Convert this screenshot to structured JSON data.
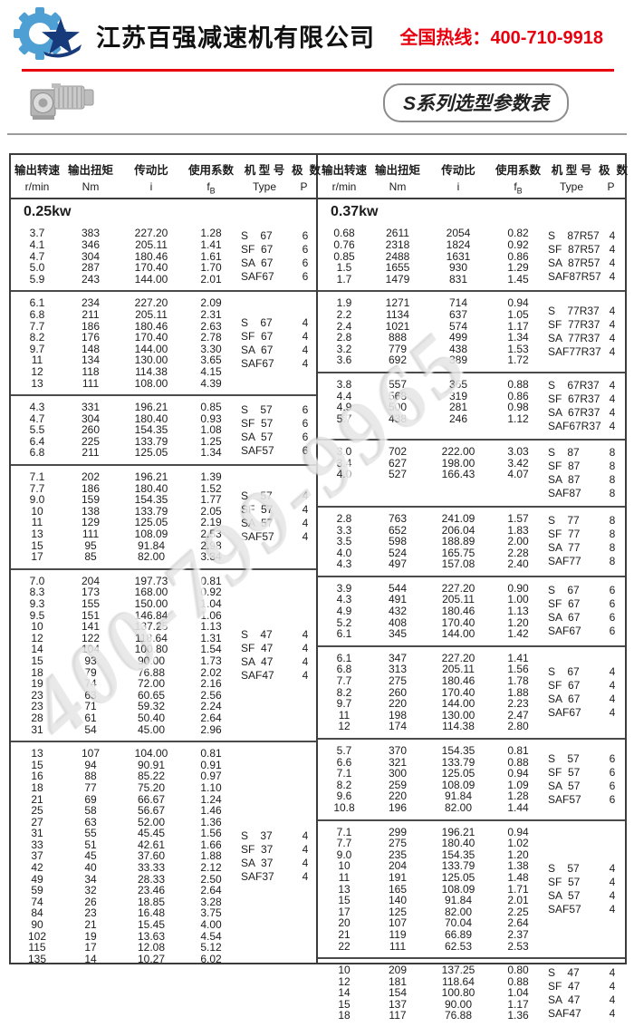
{
  "header": {
    "company": "江苏百强减速机有限公司",
    "hotline_label": "全国热线：",
    "hotline_number": "400-710-9918",
    "badge": "S系列选型参数表",
    "logo_icon": "gear-star-logo",
    "product_icon": "gear-reducer-photo"
  },
  "colors": {
    "accent_red": "#e8000f",
    "logo_blue": "#4e9fd4",
    "logo_navy": "#173a7a",
    "divider_gray": "#9c9c9c",
    "table_border": "#3c3c3c"
  },
  "watermark": "400-799-9965",
  "table_headers": {
    "col1_cn": "输出转速",
    "col1_en": "r/min",
    "col2_cn": "输出扭矩",
    "col2_en": "Nm",
    "col3_cn": "传动比",
    "col3_en": "i",
    "col4_cn": "使用系数",
    "col4_en": "f",
    "col4_sub": "B",
    "col5_cn": "机 型 号",
    "col5_en": "Type",
    "col6_cn": "极  数",
    "col6_en": "P"
  },
  "left_table": {
    "power": "0.25kw",
    "blocks": [
      {
        "rows": [
          [
            "3.7",
            "383",
            "227.20",
            "1.28"
          ],
          [
            "4.1",
            "346",
            "205.11",
            "1.41"
          ],
          [
            "4.7",
            "304",
            "180.46",
            "1.61"
          ],
          [
            "5.0",
            "287",
            "170.40",
            "1.70"
          ],
          [
            "5.9",
            "243",
            "144.00",
            "2.01"
          ]
        ],
        "types": [
          [
            "S    67",
            "6"
          ],
          [
            "SF  67",
            "6"
          ],
          [
            "SA  67",
            "6"
          ],
          [
            "SAF67",
            "6"
          ]
        ]
      },
      {
        "rows": [
          [
            "6.1",
            "234",
            "227.20",
            "2.09"
          ],
          [
            "6.8",
            "211",
            "205.11",
            "2.31"
          ],
          [
            "7.7",
            "186",
            "180.46",
            "2.63"
          ],
          [
            "8.2",
            "176",
            "170.40",
            "2.78"
          ],
          [
            "9.7",
            "148",
            "144.00",
            "3.30"
          ],
          [
            "11",
            "134",
            "130.00",
            "3.65"
          ],
          [
            "12",
            "118",
            "114.38",
            "4.15"
          ],
          [
            "13",
            "111",
            "108.00",
            "4.39"
          ]
        ],
        "types": [
          [
            "S    67",
            "4"
          ],
          [
            "SF  67",
            "4"
          ],
          [
            "SA  67",
            "4"
          ],
          [
            "SAF67",
            "4"
          ]
        ]
      },
      {
        "rows": [
          [
            "4.3",
            "331",
            "196.21",
            "0.85"
          ],
          [
            "4.7",
            "304",
            "180.40",
            "0.93"
          ],
          [
            "5.5",
            "260",
            "154.35",
            "1.08"
          ],
          [
            "6.4",
            "225",
            "133.79",
            "1.25"
          ],
          [
            "6.8",
            "211",
            "125.05",
            "1.34"
          ]
        ],
        "types": [
          [
            "S    57",
            "6"
          ],
          [
            "SF  57",
            "6"
          ],
          [
            "SA  57",
            "6"
          ],
          [
            "SAF57",
            "6"
          ]
        ]
      },
      {
        "rows": [
          [
            "7.1",
            "202",
            "196.21",
            "1.39"
          ],
          [
            "7.7",
            "186",
            "180.40",
            "1.52"
          ],
          [
            "9.0",
            "159",
            "154.35",
            "1.77"
          ],
          [
            "10",
            "138",
            "133.79",
            "2.05"
          ],
          [
            "11",
            "129",
            "125.05",
            "2.19"
          ],
          [
            "13",
            "111",
            "108.09",
            "2.53"
          ],
          [
            "15",
            "95",
            "91.84",
            "2.98"
          ],
          [
            "17",
            "85",
            "82.00",
            "3.34"
          ]
        ],
        "types": [
          [
            "S    57",
            "4"
          ],
          [
            "SF  57",
            "4"
          ],
          [
            "SA  57",
            "4"
          ],
          [
            "SAF57",
            "4"
          ]
        ]
      },
      {
        "rows": [
          [
            "7.0",
            "204",
            "197.73",
            "0.81"
          ],
          [
            "8.3",
            "173",
            "168.00",
            "0.92"
          ],
          [
            "9.3",
            "155",
            "150.00",
            "1.04"
          ],
          [
            "9.5",
            "151",
            "146.84",
            "1.06"
          ],
          [
            "10",
            "141",
            "137.25",
            "1.13"
          ],
          [
            "12",
            "122",
            "118.64",
            "1.31"
          ],
          [
            "14",
            "104",
            "100.80",
            "1.54"
          ],
          [
            "15",
            "93",
            "90.00",
            "1.73"
          ],
          [
            "18",
            "79",
            "76.88",
            "2.02"
          ],
          [
            "19",
            "74",
            "72.00",
            "2.16"
          ],
          [
            "23",
            "63",
            "60.65",
            "2.56"
          ],
          [
            "23",
            "71",
            "59.32",
            "2.24"
          ],
          [
            "28",
            "61",
            "50.40",
            "2.64"
          ],
          [
            "31",
            "54",
            "45.00",
            "2.96"
          ]
        ],
        "types": [
          [
            "S    47",
            "4"
          ],
          [
            "SF  47",
            "4"
          ],
          [
            "SA  47",
            "4"
          ],
          [
            "SAF47",
            "4"
          ]
        ]
      },
      {
        "rows": [
          [
            "13",
            "107",
            "104.00",
            "0.81"
          ],
          [
            "15",
            "94",
            "90.91",
            "0.91"
          ],
          [
            "16",
            "88",
            "85.22",
            "0.97"
          ],
          [
            "18",
            "77",
            "75.20",
            "1.10"
          ],
          [
            "21",
            "69",
            "66.67",
            "1.24"
          ],
          [
            "25",
            "58",
            "56.67",
            "1.46"
          ],
          [
            "27",
            "63",
            "52.00",
            "1.36"
          ],
          [
            "31",
            "55",
            "45.45",
            "1.56"
          ],
          [
            "33",
            "51",
            "42.61",
            "1.66"
          ],
          [
            "37",
            "45",
            "37.60",
            "1.88"
          ],
          [
            "42",
            "40",
            "33.33",
            "2.12"
          ],
          [
            "49",
            "34",
            "28.33",
            "2.50"
          ],
          [
            "59",
            "32",
            "23.46",
            "2.64"
          ],
          [
            "74",
            "26",
            "18.85",
            "3.28"
          ],
          [
            "84",
            "23",
            "16.48",
            "3.75"
          ],
          [
            "90",
            "21",
            "15.45",
            "4.00"
          ],
          [
            "102",
            "19",
            "13.63",
            "4.54"
          ],
          [
            "115",
            "17",
            "12.08",
            "5.12"
          ],
          [
            "135",
            "14",
            "10.27",
            "6.02"
          ]
        ],
        "types": [
          [
            "S    37",
            "4"
          ],
          [
            "SF  37",
            "4"
          ],
          [
            "SA  37",
            "4"
          ],
          [
            "SAF37",
            "4"
          ]
        ]
      }
    ]
  },
  "right_table": {
    "power": "0.37kw",
    "blocks": [
      {
        "rows": [
          [
            "0.68",
            "2611",
            "2054",
            "0.82"
          ],
          [
            "0.76",
            "2318",
            "1824",
            "0.92"
          ],
          [
            "0.85",
            "2488",
            "1631",
            "0.86"
          ],
          [
            "1.5",
            "1655",
            "930",
            "1.29"
          ],
          [
            "1.7",
            "1479",
            "831",
            "1.45"
          ]
        ],
        "types": [
          [
            "S    87R57",
            "4"
          ],
          [
            "SF  87R57",
            "4"
          ],
          [
            "SA  87R57",
            "4"
          ],
          [
            "SAF87R57",
            "4"
          ]
        ]
      },
      {
        "rows": [
          [
            "1.9",
            "1271",
            "714",
            "0.94"
          ],
          [
            "2.2",
            "1134",
            "637",
            "1.05"
          ],
          [
            "2.4",
            "1021",
            "574",
            "1.17"
          ],
          [
            "2.8",
            "888",
            "499",
            "1.34"
          ],
          [
            "3.2",
            "779",
            "438",
            "1.53"
          ],
          [
            "3.6",
            "692",
            "389",
            "1.72"
          ]
        ],
        "types": [
          [
            "S    77R37",
            "4"
          ],
          [
            "SF  77R37",
            "4"
          ],
          [
            "SA  77R37",
            "4"
          ],
          [
            "SAF77R37",
            "4"
          ]
        ]
      },
      {
        "rows": [
          [
            "3.8",
            "557",
            "365",
            "0.88"
          ],
          [
            "4.4",
            "568",
            "319",
            "0.86"
          ],
          [
            "4.9",
            "500",
            "281",
            "0.98"
          ],
          [
            "5.7",
            "438",
            "246",
            "1.12"
          ]
        ],
        "types": [
          [
            "S    67R37",
            "4"
          ],
          [
            "SF  67R37",
            "4"
          ],
          [
            "SA  67R37",
            "4"
          ],
          [
            "SAF67R37",
            "4"
          ]
        ]
      },
      {
        "rows": [
          [
            "3.0",
            "702",
            "222.00",
            "3.03"
          ],
          [
            "3.4",
            "627",
            "198.00",
            "3.42"
          ],
          [
            "4.0",
            "527",
            "166.43",
            "4.07"
          ]
        ],
        "types": [
          [
            "S    87",
            "8"
          ],
          [
            "SF  87",
            "8"
          ],
          [
            "SA  87",
            "8"
          ],
          [
            "SAF87",
            "8"
          ]
        ]
      },
      {
        "rows": [
          [
            "2.8",
            "763",
            "241.09",
            "1.57"
          ],
          [
            "3.3",
            "652",
            "206.04",
            "1.83"
          ],
          [
            "3.5",
            "598",
            "188.89",
            "2.00"
          ],
          [
            "4.0",
            "524",
            "165.75",
            "2.28"
          ],
          [
            "4.3",
            "497",
            "157.08",
            "2.40"
          ]
        ],
        "types": [
          [
            "S    77",
            "8"
          ],
          [
            "SF  77",
            "8"
          ],
          [
            "SA  77",
            "8"
          ],
          [
            "SAF77",
            "8"
          ]
        ]
      },
      {
        "rows": [
          [
            "3.9",
            "544",
            "227.20",
            "0.90"
          ],
          [
            "4.3",
            "491",
            "205.11",
            "1.00"
          ],
          [
            "4.9",
            "432",
            "180.46",
            "1.13"
          ],
          [
            "5.2",
            "408",
            "170.40",
            "1.20"
          ],
          [
            "6.1",
            "345",
            "144.00",
            "1.42"
          ]
        ],
        "types": [
          [
            "S    67",
            "6"
          ],
          [
            "SF  67",
            "6"
          ],
          [
            "SA  67",
            "6"
          ],
          [
            "SAF67",
            "6"
          ]
        ]
      },
      {
        "rows": [
          [
            "6.1",
            "347",
            "227.20",
            "1.41"
          ],
          [
            "6.8",
            "313",
            "205.11",
            "1.56"
          ],
          [
            "7.7",
            "275",
            "180.46",
            "1.78"
          ],
          [
            "8.2",
            "260",
            "170.40",
            "1.88"
          ],
          [
            "9.7",
            "220",
            "144.00",
            "2.23"
          ],
          [
            "11",
            "198",
            "130.00",
            "2.47"
          ],
          [
            "12",
            "174",
            "114.38",
            "2.80"
          ]
        ],
        "types": [
          [
            "S    67",
            "4"
          ],
          [
            "SF  67",
            "4"
          ],
          [
            "SA  67",
            "4"
          ],
          [
            "SAF67",
            "4"
          ]
        ]
      },
      {
        "rows": [
          [
            "5.7",
            "370",
            "154.35",
            "0.81"
          ],
          [
            "6.6",
            "321",
            "133.79",
            "0.88"
          ],
          [
            "7.1",
            "300",
            "125.05",
            "0.94"
          ],
          [
            "8.2",
            "259",
            "108.09",
            "1.09"
          ],
          [
            "9.6",
            "220",
            "91.84",
            "1.28"
          ],
          [
            "10.8",
            "196",
            "82.00",
            "1.44"
          ]
        ],
        "types": [
          [
            "S    57",
            "6"
          ],
          [
            "SF  57",
            "6"
          ],
          [
            "SA  57",
            "6"
          ],
          [
            "SAF57",
            "6"
          ]
        ]
      },
      {
        "rows": [
          [
            "7.1",
            "299",
            "196.21",
            "0.94"
          ],
          [
            "7.7",
            "275",
            "180.40",
            "1.02"
          ],
          [
            "9.0",
            "235",
            "154.35",
            "1.20"
          ],
          [
            "10",
            "204",
            "133.79",
            "1.38"
          ],
          [
            "11",
            "191",
            "125.05",
            "1.48"
          ],
          [
            "13",
            "165",
            "108.09",
            "1.71"
          ],
          [
            "15",
            "140",
            "91.84",
            "2.01"
          ],
          [
            "17",
            "125",
            "82.00",
            "2.25"
          ],
          [
            "20",
            "107",
            "70.04",
            "2.64"
          ],
          [
            "21",
            "119",
            "66.89",
            "2.37"
          ],
          [
            "22",
            "111",
            "62.53",
            "2.53"
          ]
        ],
        "types": [
          [
            "S    57",
            "4"
          ],
          [
            "SF  57",
            "4"
          ],
          [
            "SA  57",
            "4"
          ],
          [
            "SAF57",
            "4"
          ]
        ]
      },
      {
        "rows": [
          [
            "10",
            "209",
            "137.25",
            "0.80"
          ],
          [
            "12",
            "181",
            "118.64",
            "0.88"
          ],
          [
            "14",
            "154",
            "100.80",
            "1.04"
          ],
          [
            "15",
            "137",
            "90.00",
            "1.17"
          ],
          [
            "18",
            "117",
            "76.88",
            "1.36"
          ]
        ],
        "types": [
          [
            "S    47",
            "4"
          ],
          [
            "SF  47",
            "4"
          ],
          [
            "SA  47",
            "4"
          ],
          [
            "SAF47",
            "4"
          ]
        ]
      }
    ]
  }
}
